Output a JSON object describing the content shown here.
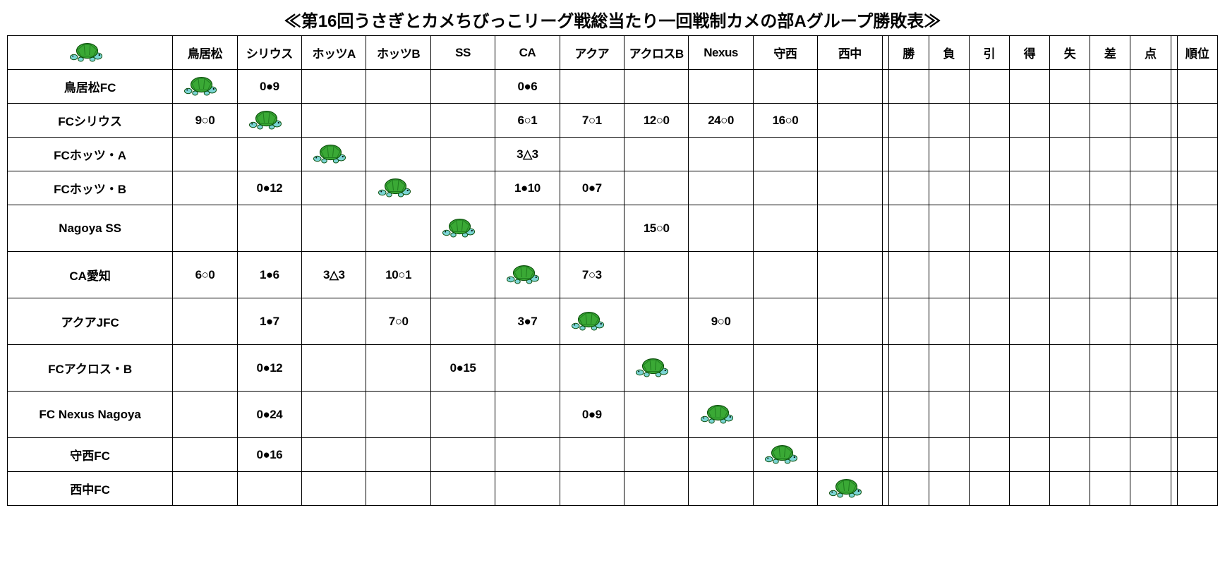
{
  "title": "≪第16回うさぎとカメちびっこリーグ戦総当たり一回戦制カメの部Aグループ勝敗表≫",
  "columns": {
    "team_header": "",
    "opponents": [
      "鳥居松",
      "シリウス",
      "ホッツA",
      "ホッツB",
      "SS",
      "CA",
      "アクア",
      "アクロスB",
      "Nexus",
      "守西",
      "西中"
    ],
    "stats": [
      "勝",
      "負",
      "引",
      "得",
      "失",
      "差",
      "点",
      "順位"
    ]
  },
  "teams": [
    {
      "name": "鳥居松FC",
      "results": [
        "TURTLE",
        "0●9",
        "",
        "",
        "",
        "0●6",
        "",
        "",
        "",
        "",
        ""
      ]
    },
    {
      "name": "FCシリウス",
      "results": [
        "9○0",
        "TURTLE",
        "",
        "",
        "",
        "6○1",
        "7○1",
        "12○0",
        "24○0",
        "16○0",
        ""
      ]
    },
    {
      "name": "FCホッツ・A",
      "results": [
        "",
        "",
        "TURTLE",
        "",
        "",
        "3△3",
        "",
        "",
        "",
        "",
        ""
      ]
    },
    {
      "name": "FCホッツ・B",
      "results": [
        "",
        "0●12",
        "",
        "TURTLE",
        "",
        "1●10",
        "0●7",
        "",
        "",
        "",
        ""
      ]
    },
    {
      "name": "Nagoya SS",
      "results": [
        "",
        "",
        "",
        "",
        "TURTLE",
        "",
        "",
        "15○0",
        "",
        "",
        ""
      ]
    },
    {
      "name": "CA愛知",
      "results": [
        "6○0",
        "1●6",
        "3△3",
        "10○1",
        "",
        "TURTLE",
        "7○3",
        "",
        "",
        "",
        ""
      ]
    },
    {
      "name": "アクアJFC",
      "results": [
        "",
        "1●7",
        "",
        "7○0",
        "",
        "3●7",
        "TURTLE",
        "",
        "9○0",
        "",
        ""
      ]
    },
    {
      "name": "FCアクロス・B",
      "results": [
        "",
        "0●12",
        "",
        "",
        "0●15",
        "",
        "",
        "TURTLE",
        "",
        "",
        ""
      ]
    },
    {
      "name": "FC Nexus Nagoya",
      "results": [
        "",
        "0●24",
        "",
        "",
        "",
        "",
        "0●9",
        "",
        "TURTLE",
        "",
        ""
      ]
    },
    {
      "name": "守西FC",
      "results": [
        "",
        "0●16",
        "",
        "",
        "",
        "",
        "",
        "",
        "",
        "TURTLE",
        ""
      ]
    },
    {
      "name": "西中FC",
      "results": [
        "",
        "",
        "",
        "",
        "",
        "",
        "",
        "",
        "",
        "",
        "TURTLE"
      ]
    }
  ],
  "turtle_colors": {
    "shell_top": "#3aa935",
    "shell_dark": "#1f7a1f",
    "body": "#7ad4d4",
    "outline": "#0a4f0a"
  }
}
